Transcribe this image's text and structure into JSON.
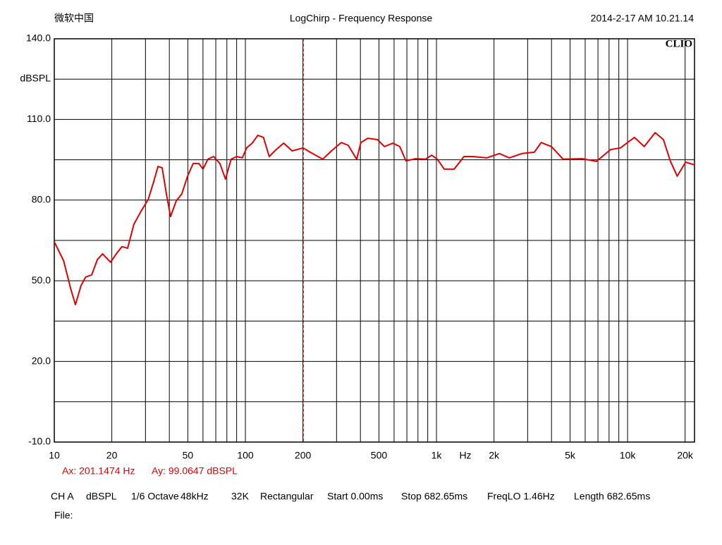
{
  "header": {
    "left": "微软中国",
    "right": "2014-2-17 AM 10.21.14",
    "brand": "CLIO"
  },
  "chart_data": {
    "type": "line",
    "title": "LogChirp - Frequency Response",
    "y_label": "dBSPL",
    "x_label": "Hz",
    "log_x": true,
    "grid": true,
    "xlim": [
      10,
      22400
    ],
    "ylim": [
      -10,
      140
    ],
    "xticks": [
      10,
      20,
      50,
      100,
      200,
      500,
      {
        "value": 1000,
        "label": "1k"
      },
      {
        "value": 2000,
        "label": "2k"
      },
      {
        "value": 5000,
        "label": "5k"
      },
      {
        "value": 10000,
        "label": "10k"
      },
      {
        "value": 20000,
        "label": "20k"
      }
    ],
    "xminor": [
      30,
      40,
      60,
      70,
      80,
      90,
      300,
      400,
      600,
      700,
      800,
      900,
      3000,
      4000,
      6000,
      7000,
      8000,
      9000
    ],
    "yticks": [
      {
        "value": 140,
        "label": "140.0"
      },
      {
        "value": 110,
        "label": "110.0"
      },
      {
        "value": 80,
        "label": "80.0"
      },
      {
        "value": 50,
        "label": "50.0"
      },
      {
        "value": 20,
        "label": "20.0"
      },
      {
        "value": -10,
        "label": "-10.0"
      }
    ],
    "yminor": [
      125,
      95,
      65,
      35,
      5
    ],
    "series": [
      {
        "name": "CH A",
        "color": "#e00000",
        "x": [
          10,
          11.2,
          12.2,
          12.9,
          13.8,
          14.6,
          15.7,
          16.8,
          17.9,
          19.7,
          21.1,
          22.6,
          24.2,
          26.1,
          28.4,
          31,
          33.1,
          34.9,
          36.7,
          38.6,
          40.6,
          43.5,
          46.5,
          49.8,
          53.3,
          57.1,
          60,
          63.6,
          68.2,
          73.6,
          78.7,
          84.2,
          90.1,
          96.4,
          101.5,
          108.6,
          116.2,
          124.4,
          133.2,
          145,
          158.7,
          175.6,
          200.7,
          218.3,
          254,
          282.1,
          317.6,
          345,
          382.4,
          402,
          436.9,
          491.5,
          534.5,
          591.5,
          642.5,
          692.1,
          778.2,
          876.5,
          943.6,
          1011,
          1098,
          1237,
          1393,
          1545,
          1832,
          2135,
          2406,
          2796,
          3250,
          3533,
          3995,
          4602,
          5797,
          6871,
          8152,
          9170,
          10860,
          12220,
          13940,
          15400,
          16730,
          18190,
          20130,
          22400
        ],
        "values": [
          64.5,
          57.4,
          46.9,
          41.1,
          48.2,
          51.4,
          52.2,
          57.9,
          60,
          56.9,
          60,
          62.7,
          62.1,
          71,
          75.8,
          80.2,
          86.8,
          92.5,
          92,
          82.3,
          73.9,
          79.7,
          82.3,
          88.9,
          93.6,
          93.6,
          91.5,
          95.2,
          96.2,
          93.6,
          87.8,
          95.2,
          96.2,
          95.7,
          99.4,
          101.2,
          104.1,
          103.3,
          96.2,
          98.8,
          101.2,
          98.3,
          99.4,
          97.8,
          95.2,
          98.3,
          101.4,
          100.4,
          95.2,
          101.4,
          103,
          102.5,
          99.9,
          101.2,
          99.9,
          94.6,
          95.4,
          95.2,
          96.7,
          95.2,
          91.5,
          91.5,
          96.2,
          96.2,
          95.7,
          97.3,
          95.7,
          97.3,
          97.8,
          101.4,
          99.9,
          95.2,
          95.4,
          94.4,
          98.8,
          99.4,
          103.3,
          99.9,
          105.1,
          102.5,
          94.6,
          88.9,
          94.1,
          93.1
        ]
      }
    ],
    "cursor": {
      "x": 201.1474,
      "x_label": "Ax: 201.1474 Hz",
      "y_label": "Ay: 99.0647 dBSPL"
    }
  },
  "footer": {
    "settings": [
      "CH A",
      "dBSPL",
      "1/6 Octave",
      "48kHz",
      "32K",
      "Rectangular",
      "Start 0.00ms",
      "Stop 682.65ms",
      "FreqLO 1.46Hz",
      "Length 682.65ms"
    ],
    "file": "File:"
  }
}
